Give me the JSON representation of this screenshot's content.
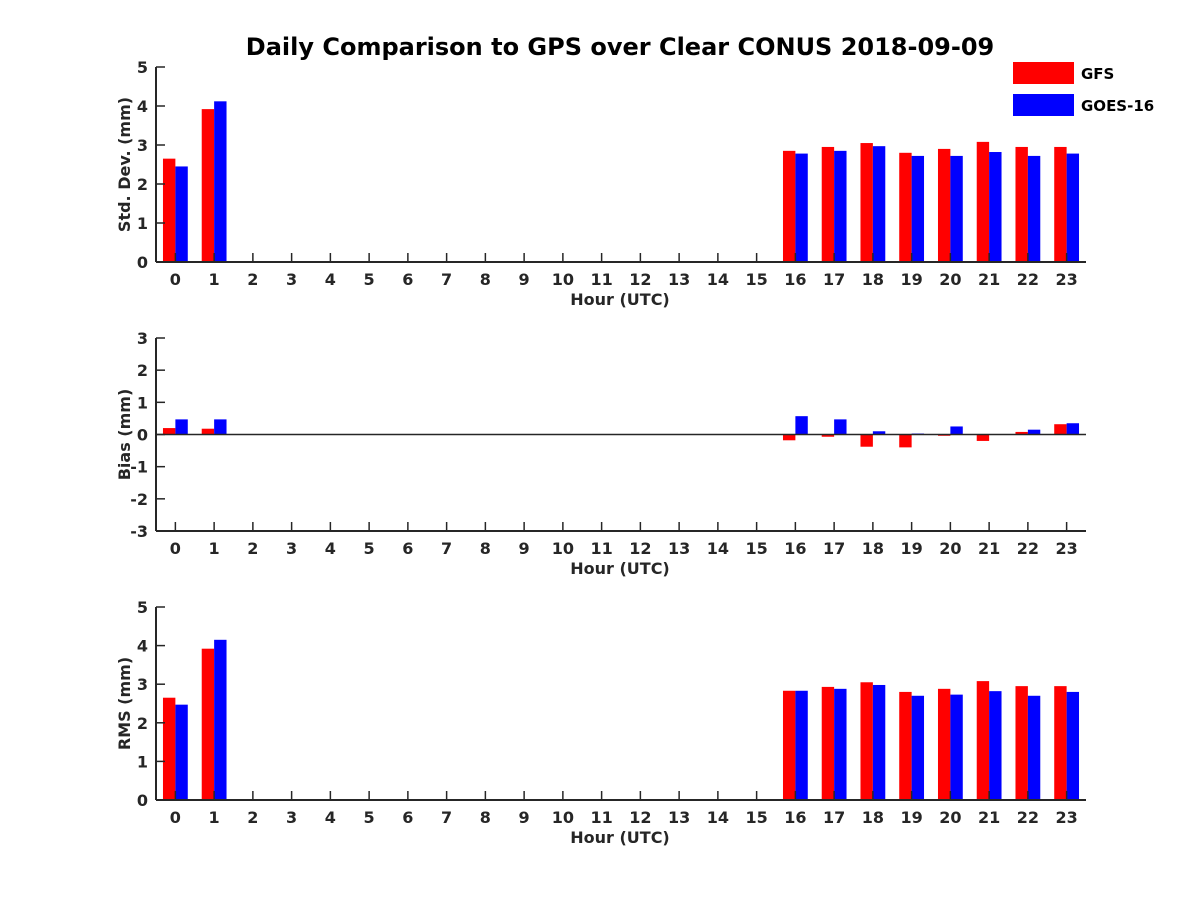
{
  "chart_data": {
    "title": "Daily Comparison to GPS over Clear CONUS 2018-09-09",
    "legend": {
      "placement": "top-right",
      "entries": [
        {
          "name": "GFS",
          "color": "#ff0000"
        },
        {
          "name": "GOES-16",
          "color": "#0000ff"
        }
      ]
    },
    "panels": [
      {
        "type": "bar",
        "ylabel": "Std. Dev. (mm)",
        "xlabel": "Hour (UTC)",
        "ylim": [
          0,
          5
        ],
        "yticks": [
          0,
          1,
          2,
          3,
          4,
          5
        ],
        "categories": [
          "0",
          "1",
          "2",
          "3",
          "4",
          "5",
          "6",
          "7",
          "8",
          "9",
          "10",
          "11",
          "12",
          "13",
          "14",
          "15",
          "16",
          "17",
          "18",
          "19",
          "20",
          "21",
          "22",
          "23"
        ],
        "series": [
          {
            "name": "GFS",
            "color": "#ff0000",
            "values": [
              2.65,
              3.92,
              null,
              null,
              null,
              null,
              null,
              null,
              null,
              null,
              null,
              null,
              null,
              null,
              null,
              null,
              2.85,
              2.95,
              3.05,
              2.8,
              2.9,
              3.08,
              2.95,
              2.95
            ]
          },
          {
            "name": "GOES-16",
            "color": "#0000ff",
            "values": [
              2.45,
              4.12,
              null,
              null,
              null,
              null,
              null,
              null,
              null,
              null,
              null,
              null,
              null,
              null,
              null,
              null,
              2.78,
              2.85,
              2.97,
              2.72,
              2.72,
              2.82,
              2.72,
              2.78
            ]
          }
        ]
      },
      {
        "type": "bar",
        "ylabel": "Bias (mm)",
        "xlabel": "Hour (UTC)",
        "ylim": [
          -3,
          3
        ],
        "yticks": [
          -3,
          -2,
          -1,
          0,
          1,
          2,
          3
        ],
        "categories": [
          "0",
          "1",
          "2",
          "3",
          "4",
          "5",
          "6",
          "7",
          "8",
          "9",
          "10",
          "11",
          "12",
          "13",
          "14",
          "15",
          "16",
          "17",
          "18",
          "19",
          "20",
          "21",
          "22",
          "23"
        ],
        "series": [
          {
            "name": "GFS",
            "color": "#ff0000",
            "values": [
              0.2,
              0.18,
              null,
              null,
              null,
              null,
              null,
              null,
              null,
              null,
              null,
              null,
              null,
              null,
              null,
              null,
              -0.18,
              -0.07,
              -0.38,
              -0.4,
              -0.04,
              -0.2,
              0.08,
              0.32
            ]
          },
          {
            "name": "GOES-16",
            "color": "#0000ff",
            "values": [
              0.47,
              0.47,
              null,
              null,
              null,
              null,
              null,
              null,
              null,
              null,
              null,
              null,
              null,
              null,
              null,
              null,
              0.57,
              0.47,
              0.1,
              0.03,
              0.25,
              0.0,
              0.15,
              0.35
            ]
          }
        ]
      },
      {
        "type": "bar",
        "ylabel": "RMS (mm)",
        "xlabel": "Hour (UTC)",
        "ylim": [
          0,
          5
        ],
        "yticks": [
          0,
          1,
          2,
          3,
          4,
          5
        ],
        "categories": [
          "0",
          "1",
          "2",
          "3",
          "4",
          "5",
          "6",
          "7",
          "8",
          "9",
          "10",
          "11",
          "12",
          "13",
          "14",
          "15",
          "16",
          "17",
          "18",
          "19",
          "20",
          "21",
          "22",
          "23"
        ],
        "series": [
          {
            "name": "GFS",
            "color": "#ff0000",
            "values": [
              2.65,
              3.92,
              null,
              null,
              null,
              null,
              null,
              null,
              null,
              null,
              null,
              null,
              null,
              null,
              null,
              null,
              2.83,
              2.93,
              3.05,
              2.8,
              2.88,
              3.08,
              2.95,
              2.95
            ]
          },
          {
            "name": "GOES-16",
            "color": "#0000ff",
            "values": [
              2.47,
              4.15,
              null,
              null,
              null,
              null,
              null,
              null,
              null,
              null,
              null,
              null,
              null,
              null,
              null,
              null,
              2.83,
              2.88,
              2.98,
              2.7,
              2.73,
              2.82,
              2.7,
              2.8
            ]
          }
        ]
      }
    ]
  }
}
